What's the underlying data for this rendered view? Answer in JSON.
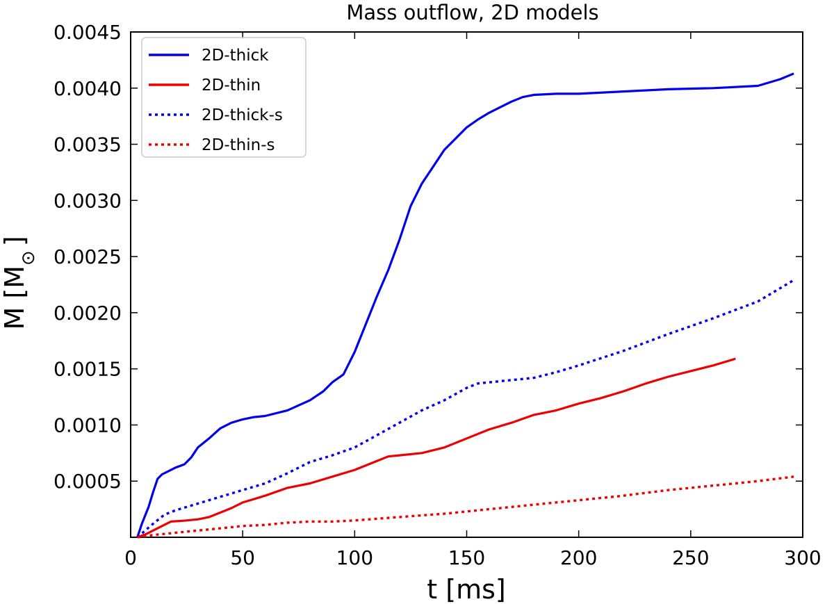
{
  "chart_data": {
    "type": "line",
    "title": "Mass outflow, 2D models",
    "xlabel": "t [ms]",
    "ylabel": "M [M",
    "ylabel_sub": "⊙",
    "ylabel_close": "]",
    "xlim": [
      0,
      300
    ],
    "ylim": [
      0,
      0.0045
    ],
    "xticks": [
      0,
      50,
      100,
      150,
      200,
      250,
      300
    ],
    "xtick_labels": [
      "0",
      "50",
      "100",
      "150",
      "200",
      "250",
      "300"
    ],
    "yticks": [
      0.0005,
      0.001,
      0.0015,
      0.002,
      0.0025,
      0.003,
      0.0035,
      0.004,
      0.0045
    ],
    "ytick_labels": [
      "0.0005",
      "0.0010",
      "0.0015",
      "0.0020",
      "0.0025",
      "0.0030",
      "0.0035",
      "0.0040",
      "0.0045"
    ],
    "grid": false,
    "legend_position": "top-left",
    "series": [
      {
        "name": "2D-thick",
        "color": "#0000ee",
        "style": "solid",
        "x": [
          3,
          5,
          8,
          10,
          12,
          14,
          17,
          20,
          24,
          27,
          30,
          35,
          40,
          45,
          50,
          55,
          60,
          70,
          80,
          86,
          90,
          95,
          100,
          105,
          110,
          115,
          120,
          125,
          130,
          135,
          140,
          145,
          150,
          155,
          160,
          165,
          170,
          175,
          180,
          190,
          200,
          220,
          240,
          260,
          280,
          290,
          296
        ],
        "y": [
          0.0,
          0.00012,
          0.00027,
          0.0004,
          0.00052,
          0.00056,
          0.00059,
          0.00062,
          0.00065,
          0.00071,
          0.0008,
          0.00088,
          0.00097,
          0.00102,
          0.00105,
          0.00107,
          0.00108,
          0.00113,
          0.00122,
          0.0013,
          0.00138,
          0.00145,
          0.00165,
          0.0019,
          0.00215,
          0.00238,
          0.00265,
          0.00295,
          0.00315,
          0.0033,
          0.00345,
          0.00355,
          0.00365,
          0.00372,
          0.00378,
          0.00383,
          0.00388,
          0.00392,
          0.00394,
          0.00395,
          0.00395,
          0.00397,
          0.00399,
          0.004,
          0.00402,
          0.00408,
          0.00413
        ]
      },
      {
        "name": "2D-thin",
        "color": "#ee0000",
        "style": "solid",
        "x": [
          3,
          7,
          12,
          15,
          18,
          25,
          30,
          35,
          40,
          45,
          50,
          55,
          60,
          70,
          80,
          90,
          100,
          110,
          115,
          120,
          130,
          140,
          150,
          160,
          170,
          180,
          190,
          200,
          210,
          220,
          230,
          240,
          250,
          260,
          270
        ],
        "y": [
          0.0,
          3e-05,
          8e-05,
          0.00011,
          0.00014,
          0.00015,
          0.00016,
          0.00018,
          0.00022,
          0.00026,
          0.00031,
          0.00034,
          0.00037,
          0.00044,
          0.00048,
          0.00054,
          0.0006,
          0.00068,
          0.00072,
          0.00073,
          0.00075,
          0.0008,
          0.00088,
          0.00096,
          0.00102,
          0.00109,
          0.00113,
          0.00119,
          0.00124,
          0.0013,
          0.00137,
          0.00143,
          0.00148,
          0.00153,
          0.00159
        ]
      },
      {
        "name": "2D-thick-s",
        "color": "#0000ee",
        "style": "dotted",
        "x": [
          3,
          10,
          15,
          20,
          30,
          40,
          50,
          60,
          70,
          80,
          90,
          100,
          110,
          120,
          130,
          140,
          150,
          155,
          160,
          170,
          180,
          190,
          200,
          220,
          240,
          260,
          280,
          296
        ],
        "y": [
          0.0,
          0.00012,
          0.0002,
          0.00024,
          0.0003,
          0.00036,
          0.00042,
          0.00048,
          0.00057,
          0.00067,
          0.00073,
          0.0008,
          0.00091,
          0.00102,
          0.00113,
          0.00122,
          0.00133,
          0.00137,
          0.00138,
          0.0014,
          0.00142,
          0.00147,
          0.00153,
          0.00166,
          0.00181,
          0.00195,
          0.0021,
          0.00229
        ]
      },
      {
        "name": "2D-thin-s",
        "color": "#ee0000",
        "style": "dotted",
        "x": [
          3,
          10,
          20,
          30,
          40,
          50,
          60,
          70,
          80,
          90,
          100,
          120,
          140,
          160,
          180,
          200,
          220,
          240,
          260,
          280,
          296
        ],
        "y": [
          0.0,
          2e-05,
          4e-05,
          6e-05,
          8e-05,
          0.0001,
          0.00011,
          0.00013,
          0.00014,
          0.00014,
          0.00015,
          0.00018,
          0.00021,
          0.00025,
          0.00029,
          0.00033,
          0.00037,
          0.00042,
          0.00046,
          0.0005,
          0.00054
        ]
      }
    ]
  }
}
